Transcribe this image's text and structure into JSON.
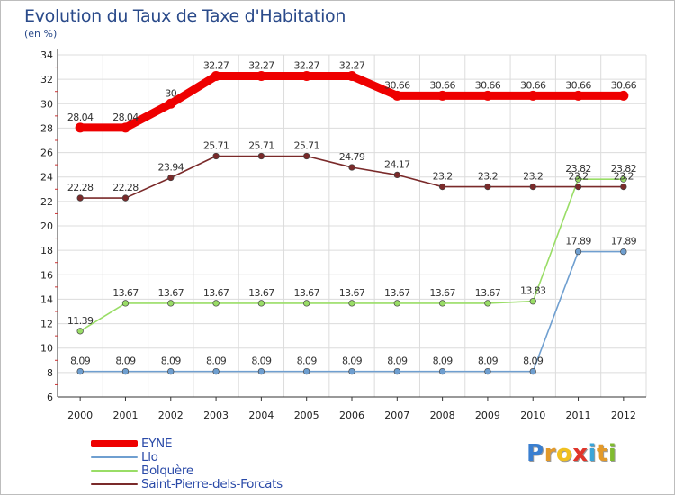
{
  "title": "Evolution du Taux de Taxe d'Habitation",
  "unit": "(en %)",
  "logo": {
    "letters": [
      {
        "char": "P",
        "color": "#3a7fd0"
      },
      {
        "char": "r",
        "color": "#e39a2a"
      },
      {
        "char": "o",
        "color": "#f0c020"
      },
      {
        "char": "x",
        "color": "#e0352a"
      },
      {
        "char": "i",
        "color": "#3aa5d8"
      },
      {
        "char": "t",
        "color": "#e39a2a"
      },
      {
        "char": "i",
        "color": "#80bb30"
      }
    ]
  },
  "chart_data": {
    "type": "line",
    "title": "Evolution du Taux de Taxe d'Habitation",
    "ylabel": "(en %)",
    "xlabel": "",
    "x": [
      "2000",
      "2001",
      "2002",
      "2003",
      "2004",
      "2005",
      "2006",
      "2007",
      "2008",
      "2009",
      "2010",
      "2011",
      "2012"
    ],
    "ylim": [
      6,
      34
    ],
    "yticks": [
      6,
      8,
      10,
      12,
      14,
      16,
      18,
      20,
      22,
      24,
      26,
      28,
      30,
      32,
      34
    ],
    "grid": true,
    "legend_position": "bottom-left",
    "series": [
      {
        "name": "EYNE",
        "color": "#ee0000",
        "values": [
          28.04,
          28.04,
          30,
          32.27,
          32.27,
          32.27,
          32.27,
          30.66,
          30.66,
          30.66,
          30.66,
          30.66,
          30.66
        ],
        "labels": [
          "28.04",
          "28.04",
          "30",
          "32.27",
          "32.27",
          "32.27",
          "32.27",
          "30.66",
          "30.66",
          "30.66",
          "30.66",
          "30.66",
          "30.66"
        ]
      },
      {
        "name": "Llo",
        "color": "#6f9fd0",
        "values": [
          8.09,
          8.09,
          8.09,
          8.09,
          8.09,
          8.09,
          8.09,
          8.09,
          8.09,
          8.09,
          8.09,
          17.89,
          17.89
        ],
        "labels": [
          "8.09",
          "8.09",
          "8.09",
          "8.09",
          "8.09",
          "8.09",
          "8.09",
          "8.09",
          "8.09",
          "8.09",
          "8.09",
          "17.89",
          "17.89"
        ]
      },
      {
        "name": "Bolquère",
        "color": "#99dd66",
        "values": [
          11.39,
          13.67,
          13.67,
          13.67,
          13.67,
          13.67,
          13.67,
          13.67,
          13.67,
          13.67,
          13.83,
          23.82,
          23.82
        ],
        "labels": [
          "11.39",
          "13.67",
          "13.67",
          "13.67",
          "13.67",
          "13.67",
          "13.67",
          "13.67",
          "13.67",
          "13.67",
          "13.83",
          "23.82",
          "23.82"
        ]
      },
      {
        "name": "Saint-Pierre-dels-Forcats",
        "color": "#7a2a2a",
        "values": [
          22.28,
          22.28,
          23.94,
          25.71,
          25.71,
          25.71,
          24.79,
          24.17,
          23.2,
          23.2,
          23.2,
          23.2,
          23.2
        ],
        "labels": [
          "22.28",
          "22.28",
          "23.94",
          "25.71",
          "25.71",
          "25.71",
          "24.79",
          "24.17",
          "23.2",
          "23.2",
          "23.2",
          "23.2",
          "23.2"
        ]
      }
    ]
  }
}
